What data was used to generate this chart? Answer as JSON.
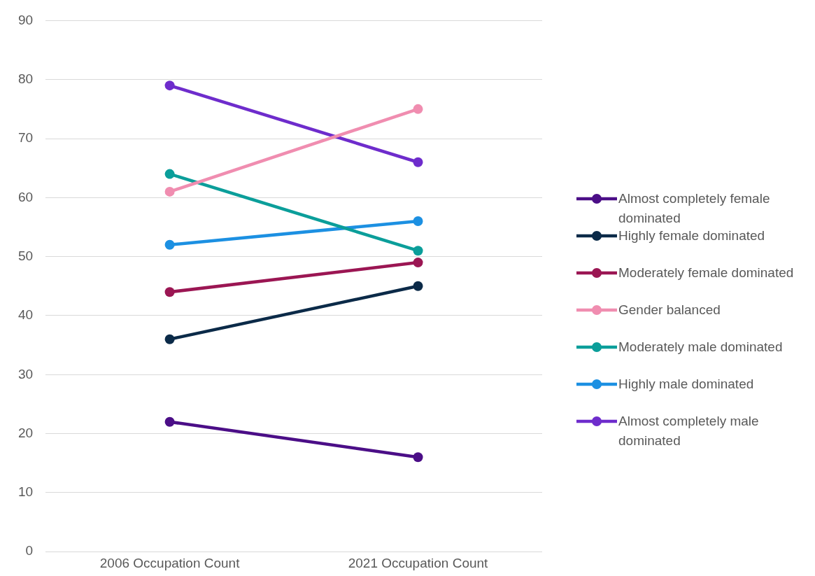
{
  "chart_data": {
    "type": "line",
    "categories": [
      "2006 Occupation Count",
      "2021 Occupation Count"
    ],
    "series": [
      {
        "name": "Almost completely female dominated",
        "color": "#4b0e87",
        "values": [
          22,
          16
        ]
      },
      {
        "name": "Highly female dominated",
        "color": "#0b2a48",
        "values": [
          36,
          45
        ]
      },
      {
        "name": "Moderately female dominated",
        "color": "#9b1653",
        "values": [
          44,
          49
        ]
      },
      {
        "name": "Gender balanced",
        "color": "#f08db0",
        "values": [
          61,
          75
        ]
      },
      {
        "name": "Moderately male dominated",
        "color": "#0b9e9a",
        "values": [
          64,
          51
        ]
      },
      {
        "name": "Highly male dominated",
        "color": "#1c90e2",
        "values": [
          52,
          56
        ]
      },
      {
        "name": "Almost completely male dominated",
        "color": "#6e2ccc",
        "values": [
          79,
          66
        ]
      }
    ],
    "ylim": [
      0,
      90
    ],
    "yticks": [
      0,
      10,
      20,
      30,
      40,
      50,
      60,
      70,
      80,
      90
    ],
    "grid": "y",
    "legend": "right",
    "marker": "circle",
    "line_style": "solid"
  }
}
